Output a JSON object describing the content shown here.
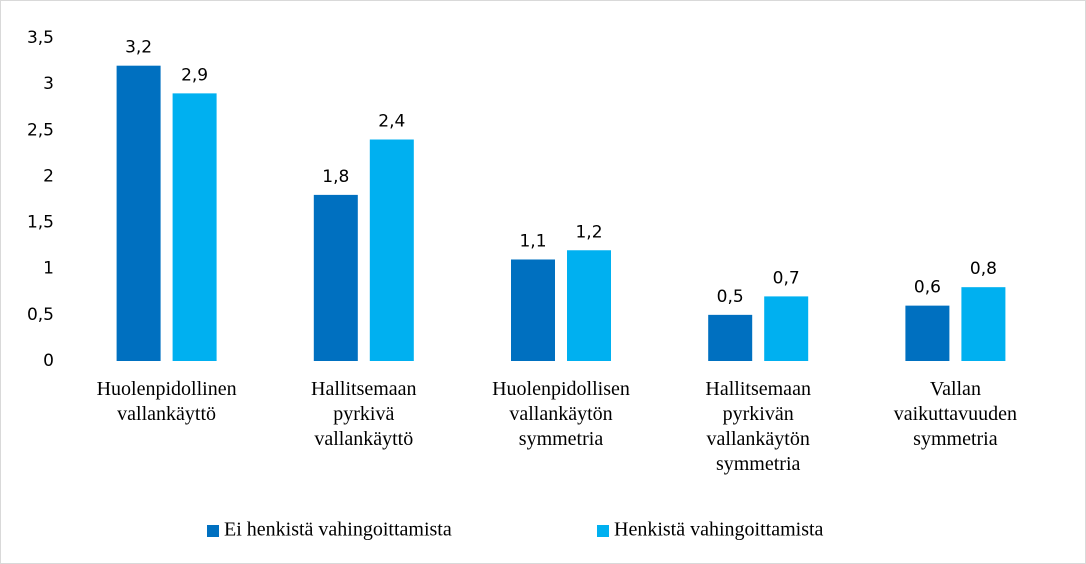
{
  "chart_data": {
    "type": "bar",
    "categories": [
      "Huolenpidollinen vallankäyttö",
      "Hallitsemaan pyrkivä vallankäyttö",
      "Huolenpidollisen vallankäytön symmetria",
      "Hallitsemaan pyrkivän vallankäytön symmetria",
      "Vallan vaikuttavuuden symmetria"
    ],
    "series": [
      {
        "name": "Ei henkistä vahingoittamista",
        "color": "#0070c0",
        "values": [
          3.2,
          1.8,
          1.1,
          0.5,
          0.6
        ],
        "value_labels": [
          "3,2",
          "1,8",
          "1,1",
          "0,5",
          "0,6"
        ]
      },
      {
        "name": "Henkistä vahingoittamista",
        "color": "#00b0f0",
        "values": [
          2.9,
          2.4,
          1.2,
          0.7,
          0.8
        ],
        "value_labels": [
          "2,9",
          "2,4",
          "1,2",
          "0,7",
          "0,8"
        ]
      }
    ],
    "ylim": [
      0,
      3.5
    ],
    "yticks": [
      0,
      {
        "value": 0.5,
        "label": "0,5"
      },
      1,
      {
        "value": 1.5,
        "label": "1,5"
      },
      2,
      {
        "value": 2.5,
        "label": "2,5"
      },
      3,
      {
        "value": 3.5,
        "label": "3,5"
      }
    ],
    "legend": "bottom"
  }
}
